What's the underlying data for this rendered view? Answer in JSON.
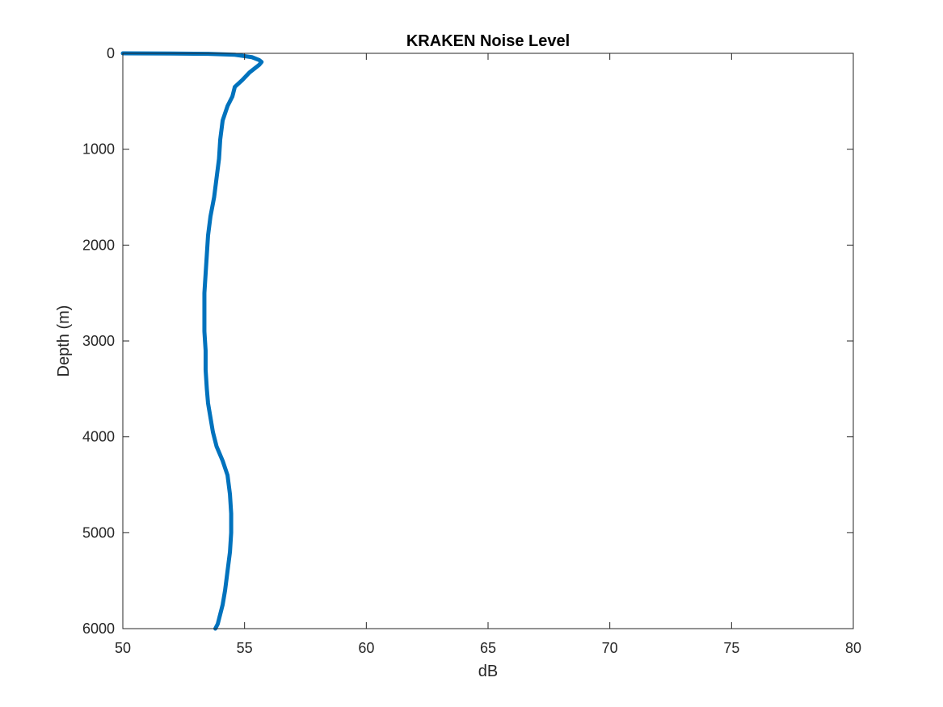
{
  "chart_data": {
    "type": "line",
    "title": "KRAKEN Noise Level",
    "xlabel": "dB",
    "ylabel": "Depth (m)",
    "xlim": [
      50,
      80
    ],
    "ylim": [
      0,
      6000
    ],
    "y_reversed": true,
    "grid": true,
    "x_ticks": [
      50,
      55,
      60,
      65,
      70,
      75,
      80
    ],
    "y_ticks": [
      0,
      1000,
      2000,
      3000,
      4000,
      5000,
      6000
    ],
    "line_color": "#0072BD",
    "series": [
      {
        "x": [
          50.0,
          52.0,
          53.5,
          54.6,
          55.3,
          55.6,
          55.7,
          55.6,
          55.2,
          54.9,
          54.6,
          54.5,
          54.3,
          54.1,
          54.0,
          53.95,
          53.85,
          53.75,
          53.6,
          53.5,
          53.45,
          53.4,
          53.35,
          53.35,
          53.35,
          53.4,
          53.4,
          53.45,
          53.5,
          53.6,
          53.7,
          53.85,
          54.1,
          54.3,
          54.4,
          54.45,
          54.45,
          54.4,
          54.3,
          54.2,
          54.1,
          54.0,
          53.9,
          53.8
        ],
        "y": [
          0,
          2,
          5,
          15,
          40,
          70,
          90,
          120,
          200,
          280,
          350,
          450,
          550,
          700,
          900,
          1100,
          1300,
          1500,
          1700,
          1900,
          2100,
          2300,
          2500,
          2700,
          2900,
          3100,
          3300,
          3500,
          3650,
          3800,
          3950,
          4100,
          4250,
          4400,
          4600,
          4800,
          5000,
          5200,
          5400,
          5600,
          5750,
          5850,
          5950,
          6000
        ]
      }
    ]
  }
}
